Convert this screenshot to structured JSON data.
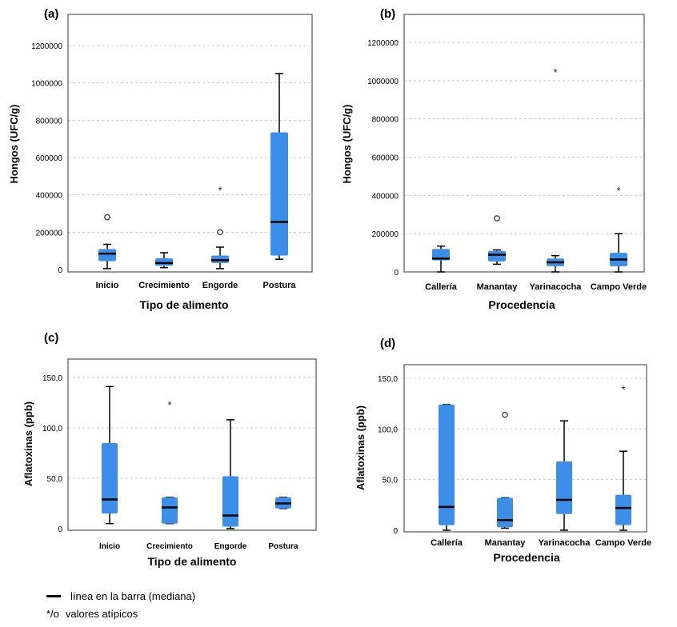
{
  "chart_data": [
    {
      "type": "box",
      "panel": "(a)",
      "xlabel": "Tipo de alimento",
      "ylabel": "Hongos (UFC/g)",
      "ylim": [
        0,
        1300000
      ],
      "yticks": [
        "0",
        "200000",
        "400000",
        "600000",
        "800000",
        "1000000",
        "1200000"
      ],
      "ytick_values": [
        0,
        200000,
        400000,
        600000,
        800000,
        1000000,
        1200000
      ],
      "categories": [
        "Inicio",
        "Crecimiento",
        "Engorde",
        "Postura"
      ],
      "boxes": [
        {
          "min": 5000,
          "q1": 45000,
          "median": 85000,
          "q3": 110000,
          "max": 135000,
          "outliers": [
            {
              "value": 280000,
              "kind": "circle"
            }
          ]
        },
        {
          "min": 10000,
          "q1": 20000,
          "median": 35000,
          "q3": 60000,
          "max": 90000,
          "outliers": []
        },
        {
          "min": 5000,
          "q1": 35000,
          "median": 50000,
          "q3": 75000,
          "max": 120000,
          "outliers": [
            {
              "value": 200000,
              "kind": "circle"
            },
            {
              "value": 430000,
              "kind": "star"
            }
          ]
        },
        {
          "min": 55000,
          "q1": 75000,
          "median": 255000,
          "q3": 735000,
          "max": 1050000,
          "outliers": []
        }
      ]
    },
    {
      "type": "box",
      "panel": "(b)",
      "xlabel": "Procedencia",
      "ylabel": "Hongos (UFC/g)",
      "ylim": [
        0,
        1300000
      ],
      "yticks": [
        "0",
        "200000",
        "400000",
        "600000",
        "800000",
        "1000000",
        "1200000"
      ],
      "ytick_values": [
        0,
        200000,
        400000,
        600000,
        800000,
        1000000,
        1200000
      ],
      "categories": [
        "Callería",
        "Manantay",
        "Yarinacocha",
        "Campo Verde"
      ],
      "boxes": [
        {
          "min": 0,
          "q1": 60000,
          "median": 70000,
          "q3": 120000,
          "max": 135000,
          "outliers": []
        },
        {
          "min": 40000,
          "q1": 55000,
          "median": 90000,
          "q3": 110000,
          "max": 115000,
          "outliers": [
            {
              "value": 280000,
              "kind": "circle"
            }
          ]
        },
        {
          "min": 0,
          "q1": 30000,
          "median": 50000,
          "q3": 70000,
          "max": 85000,
          "outliers": [
            {
              "value": 1050000,
              "kind": "star"
            }
          ]
        },
        {
          "min": 0,
          "q1": 30000,
          "median": 65000,
          "q3": 100000,
          "max": 200000,
          "outliers": [
            {
              "value": 430000,
              "kind": "star"
            }
          ]
        }
      ]
    },
    {
      "type": "box",
      "panel": "(c)",
      "xlabel": "Tipo de alimento",
      "ylabel": "Aflatoxinas (ppb)",
      "ylim": [
        0,
        170
      ],
      "yticks": [
        "0",
        "50,0",
        "100,0",
        "150,0"
      ],
      "ytick_values": [
        0,
        50,
        100,
        150
      ],
      "categories": [
        "Inicio",
        "Crecimiento",
        "Engorde",
        "Postura"
      ],
      "boxes": [
        {
          "min": 5,
          "q1": 15,
          "median": 29,
          "q3": 85,
          "max": 141,
          "outliers": []
        },
        {
          "min": 5,
          "q1": 5,
          "median": 21,
          "q3": 31,
          "max": 31,
          "outliers": [
            {
              "value": 124,
              "kind": "star"
            }
          ]
        },
        {
          "min": 0,
          "q1": 2,
          "median": 13,
          "q3": 52,
          "max": 108,
          "outliers": []
        },
        {
          "min": 20,
          "q1": 20,
          "median": 25,
          "q3": 31,
          "max": 31,
          "outliers": []
        }
      ]
    },
    {
      "type": "box",
      "panel": "(d)",
      "xlabel": "Procedencia",
      "ylabel": "Aflatoxinas (ppb)",
      "ylim": [
        0,
        170
      ],
      "yticks": [
        "0",
        "50,0",
        "100,0",
        "150,0"
      ],
      "ytick_values": [
        0,
        50,
        100,
        150
      ],
      "categories": [
        "Callería",
        "Manantay",
        "Yarinacocha",
        "Campo Verde"
      ],
      "boxes": [
        {
          "min": 0,
          "q1": 5,
          "median": 23,
          "q3": 124,
          "max": 124,
          "outliers": []
        },
        {
          "min": 2,
          "q1": 3,
          "median": 10,
          "q3": 32,
          "max": 32,
          "outliers": [
            {
              "value": 114,
              "kind": "circle"
            }
          ]
        },
        {
          "min": 0,
          "q1": 16,
          "median": 30,
          "q3": 68,
          "max": 108,
          "outliers": []
        },
        {
          "min": 0,
          "q1": 5,
          "median": 22,
          "q3": 35,
          "max": 78,
          "outliers": [
            {
              "value": 140,
              "kind": "star"
            }
          ]
        }
      ]
    }
  ],
  "legend": {
    "median_label": "línea en la barra (mediana)",
    "outlier_symbol": "*/o",
    "outlier_label": "valores atípicos"
  },
  "colors": {
    "box_fill": "#3d8ee8"
  }
}
